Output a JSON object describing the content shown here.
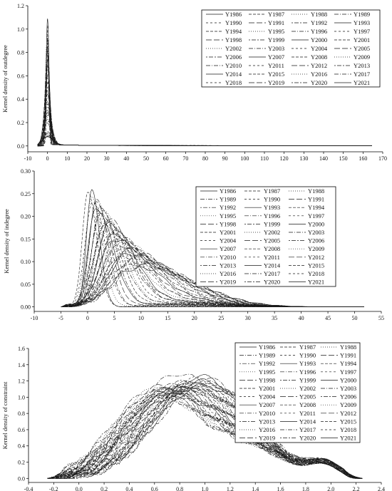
{
  "years": [
    "Y1986",
    "Y1987",
    "Y1988",
    "Y1989",
    "Y1990",
    "Y1991",
    "Y1992",
    "Y1993",
    "Y1994",
    "Y1995",
    "Y1996",
    "Y1997",
    "Y1998",
    "Y1999",
    "Y2000",
    "Y2001",
    "Y2002",
    "Y2003",
    "Y2004",
    "Y2005",
    "Y2006",
    "Y2007",
    "Y2008",
    "Y2009",
    "Y2010",
    "Y2011",
    "Y2012",
    "Y2013",
    "Y2014",
    "Y2015",
    "Y2016",
    "Y2017",
    "Y2018",
    "Y2019",
    "Y2020",
    "Y2021"
  ],
  "colors": {
    "line": "#1a1a1a",
    "axis": "#000000",
    "background": "#ffffff"
  },
  "chart_data": [
    {
      "type": "line",
      "title": "",
      "xlabel": "",
      "ylabel": "Kernel density of outdegree",
      "xlim": [
        -10,
        170
      ],
      "ylim": [
        -0.05,
        1.2
      ],
      "xticks": [
        "-10",
        "0",
        "10",
        "20",
        "30",
        "40",
        "50",
        "60",
        "70",
        "80",
        "90",
        "100",
        "110",
        "120",
        "130",
        "140",
        "150",
        "160",
        "170"
      ],
      "yticks": [
        "0.0",
        "0.2",
        "0.4",
        "0.6",
        "0.8",
        "1.0",
        "1.2"
      ],
      "legend_placement": "top-right",
      "legend_columns": 4,
      "series_shape": {
        "description": "Kernel density estimates, one curve per year (1986-2021); all curves peak sharply near x = 0 and decay to ~0 beyond x = 5.",
        "peak_x": 0,
        "peak_y_range": [
          0.09,
          1.08
        ],
        "range_of_curves_x": [
          -5,
          165
        ]
      }
    },
    {
      "type": "line",
      "title": "",
      "xlabel": "",
      "ylabel": "Kernel density of indegree",
      "xlim": [
        -10,
        55
      ],
      "ylim": [
        -0.01,
        0.3
      ],
      "xticks": [
        "-10",
        "-5",
        "0",
        "5",
        "10",
        "15",
        "20",
        "25",
        "30",
        "35",
        "40",
        "45",
        "50",
        "55"
      ],
      "yticks": [
        "0.00",
        "0.05",
        "0.10",
        "0.15",
        "0.20",
        "0.25",
        "0.30"
      ],
      "legend_placement": "top-right",
      "legend_columns": 3,
      "series_shape": {
        "description": "Kernel density estimates, one curve per year; early years peak sharply near x = 0.5 (~0.26), later years flatten with peak ~0.06 near x = 6-10, tails extend to ~50.",
        "peak_x_range": [
          0.5,
          10
        ],
        "peak_y_range": [
          0.05,
          0.265
        ],
        "range_of_curves_x": [
          -5,
          52
        ]
      }
    },
    {
      "type": "line",
      "title": "",
      "xlabel": "",
      "ylabel": "Kernel density of constraint",
      "xlim": [
        -0.4,
        2.4
      ],
      "ylim": [
        -0.05,
        1.6
      ],
      "xticks": [
        "-0.4",
        "-0.2",
        "0.0",
        "0.2",
        "0.4",
        "0.6",
        "0.8",
        "1.0",
        "1.2",
        "1.4",
        "1.6",
        "1.8",
        "2.0",
        "2.2",
        "2.4"
      ],
      "yticks": [
        "0.0",
        "0.2",
        "0.4",
        "0.6",
        "0.8",
        "1.0",
        "1.2",
        "1.4",
        "1.6"
      ],
      "legend_placement": "top-right",
      "legend_columns": 3,
      "series_shape": {
        "description": "Kernel density estimates, one curve per year; broad humps peaking between x = 0.6 and 1.0 (0.85-1.38), a shoulder near x = 1.9-2.0, support from about -0.25 to 2.25.",
        "peak_x_range": [
          0.6,
          0.95
        ],
        "peak_y_range": [
          0.85,
          1.38
        ],
        "range_of_curves_x": [
          -0.25,
          2.25
        ]
      }
    }
  ]
}
